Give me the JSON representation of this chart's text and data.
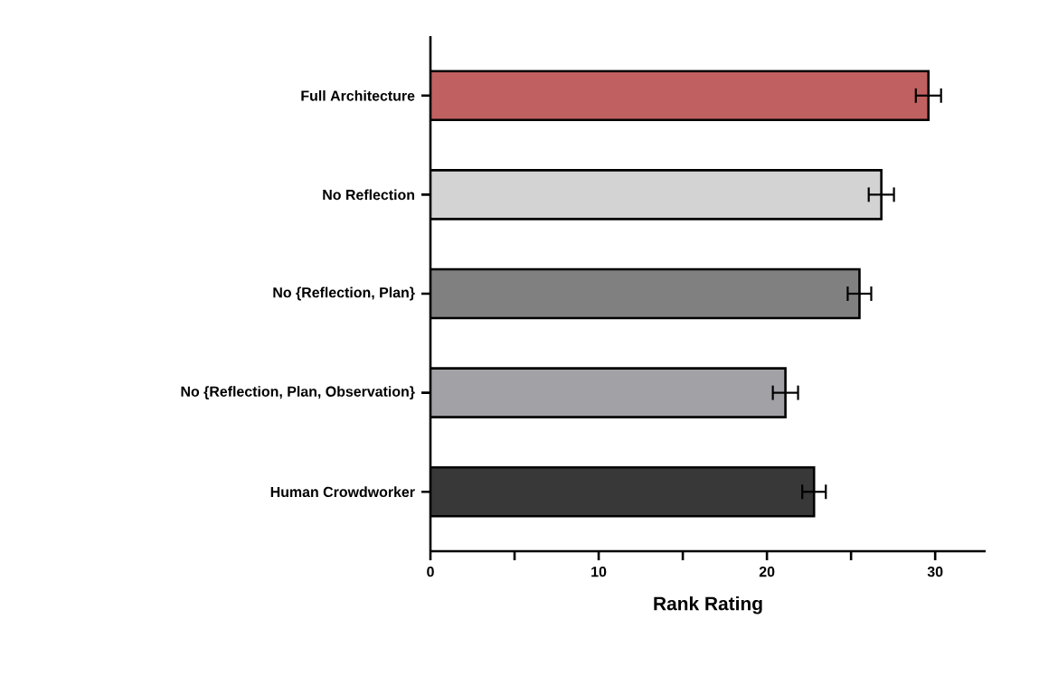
{
  "chart_data": {
    "type": "bar",
    "orientation": "horizontal",
    "xlabel": "Rank Rating",
    "categories": [
      "Full Architecture",
      "No Reflection",
      "No {Reflection, Plan}",
      "No {Reflection, Plan, Observation}",
      "Human Crowdworker"
    ],
    "values": [
      29.6,
      26.8,
      25.5,
      21.1,
      22.8
    ],
    "errors": [
      0.75,
      0.75,
      0.7,
      0.75,
      0.7
    ],
    "colors": [
      "#c06060",
      "#d3d3d3",
      "#808080",
      "#a2a2a6",
      "#383838"
    ],
    "xlim": [
      0,
      33
    ],
    "xticks": [
      0,
      {
        "value": 5,
        "label": null
      },
      10,
      {
        "value": 15,
        "label": null
      },
      20,
      {
        "value": 25,
        "label": null
      },
      30
    ],
    "grid": false
  }
}
